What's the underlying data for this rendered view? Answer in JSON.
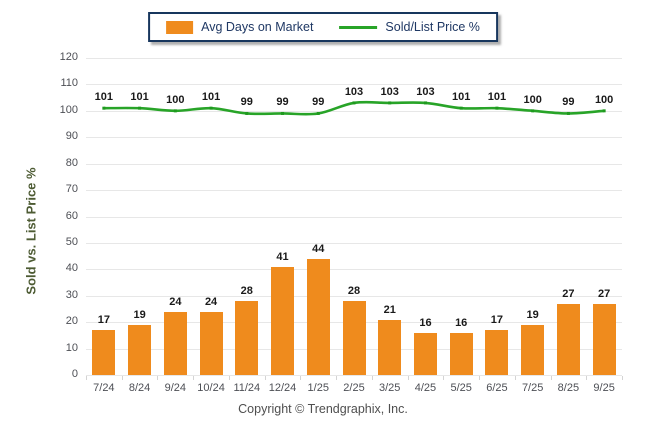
{
  "legend": {
    "items": [
      {
        "label": "Avg Days on Market",
        "type": "bar",
        "color": "#EF8B1D"
      },
      {
        "label": "Sold/List Price %",
        "type": "line",
        "color": "#28A428"
      }
    ]
  },
  "chart_data": {
    "type": "bar+line",
    "categories": [
      "7/24",
      "8/24",
      "9/24",
      "10/24",
      "11/24",
      "12/24",
      "1/25",
      "2/25",
      "3/25",
      "4/25",
      "5/25",
      "6/25",
      "7/25",
      "8/25",
      "9/25"
    ],
    "series": [
      {
        "name": "Avg Days on Market",
        "type": "bar",
        "color": "#EF8B1D",
        "values": [
          17,
          19,
          24,
          24,
          28,
          41,
          44,
          28,
          21,
          16,
          16,
          17,
          19,
          27,
          27
        ]
      },
      {
        "name": "Sold/List Price %",
        "type": "line",
        "color": "#28A428",
        "marker_color": "#1f9a1f",
        "values": [
          101,
          101,
          100,
          101,
          99,
          99,
          99,
          103,
          103,
          103,
          101,
          101,
          100,
          99,
          100
        ]
      }
    ],
    "xlabel": "",
    "ylabel": "Sold vs. List Price %",
    "ylim": [
      0,
      120
    ],
    "ytick_step": 10,
    "grid": true,
    "legend_position": "top-center"
  },
  "footer": {
    "copyright": "Copyright © Trendgraphix, Inc."
  }
}
